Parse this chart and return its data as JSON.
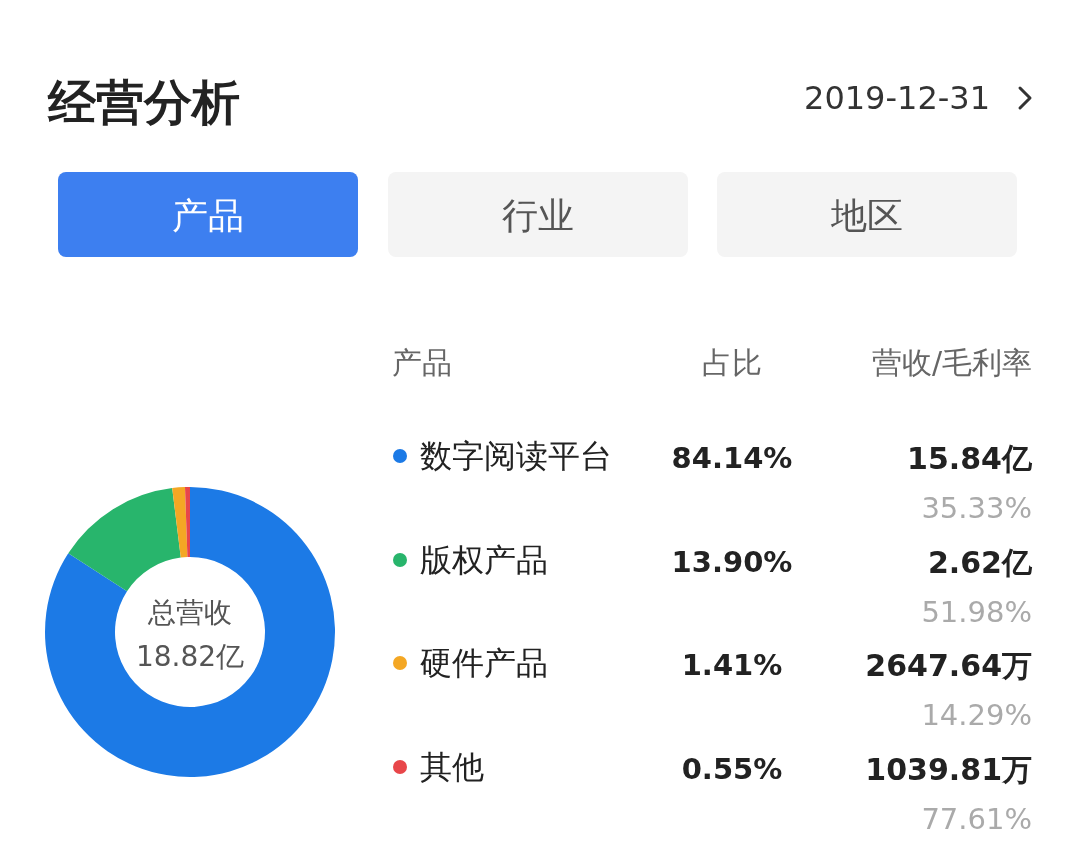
{
  "chart_data": {
    "type": "donut",
    "title": "经营分析",
    "subtitle": "2019-12-31",
    "categories": [
      "数字阅读平台",
      "版权产品",
      "硬件产品",
      "其他"
    ],
    "values": [
      84.14,
      13.9,
      1.41,
      0.55
    ],
    "colors": [
      "#1c7ae6",
      "#28b56c",
      "#f4a724",
      "#e8464a"
    ],
    "value_labels": [
      "84.14%",
      "13.90%",
      "1.41%",
      "0.55%"
    ],
    "legend": "right",
    "annotations": [
      "产品",
      "行业",
      "地区",
      "产品",
      "占比",
      "营收/毛利率",
      "总营收",
      "18.82亿",
      "15.84亿",
      "35.33%",
      "2.62亿",
      "51.98%",
      "2647.64万",
      "14.29%",
      "1039.81万",
      "77.61%"
    ]
  }
}
